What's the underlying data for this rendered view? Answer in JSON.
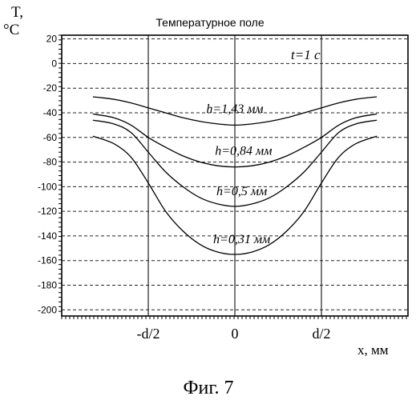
{
  "figure_caption": "Фиг. 7",
  "chart_data": {
    "type": "line",
    "title": "Температурное поле",
    "ylabel_symbol": "T,",
    "ylabel_unit": "°C",
    "xlabel": "x, мм",
    "annotation": "t=1 c",
    "ylim": [
      -205,
      23
    ],
    "yticks": [
      20,
      0,
      -20,
      -40,
      -60,
      -80,
      -100,
      -120,
      -140,
      -160,
      -180,
      -200
    ],
    "xlim": [
      -1,
      1
    ],
    "xticks": [
      {
        "value": -0.5,
        "label": "-d/2"
      },
      {
        "value": 0,
        "label": "0"
      },
      {
        "value": 0.5,
        "label": "d/2"
      }
    ],
    "grid": true,
    "series": [
      {
        "name": "h=1,43 мм",
        "x": [
          -0.82,
          -0.7,
          -0.6,
          -0.5,
          -0.4,
          -0.3,
          -0.2,
          -0.1,
          0,
          0.1,
          0.2,
          0.3,
          0.4,
          0.5,
          0.6,
          0.7,
          0.82
        ],
        "y": [
          -27,
          -29,
          -32,
          -36,
          -40,
          -44,
          -47,
          -49,
          -50,
          -49,
          -47,
          -44,
          -40,
          -36,
          -32,
          -29,
          -27
        ]
      },
      {
        "name": "h=0,84 мм",
        "x": [
          -0.82,
          -0.7,
          -0.6,
          -0.5,
          -0.4,
          -0.3,
          -0.2,
          -0.1,
          0,
          0.1,
          0.2,
          0.3,
          0.4,
          0.5,
          0.6,
          0.7,
          0.82
        ],
        "y": [
          -41,
          -44,
          -50,
          -60,
          -68,
          -75,
          -80,
          -83,
          -84,
          -83,
          -80,
          -75,
          -68,
          -60,
          -50,
          -44,
          -41
        ]
      },
      {
        "name": "h=0,5 мм",
        "x": [
          -0.82,
          -0.7,
          -0.6,
          -0.5,
          -0.4,
          -0.3,
          -0.2,
          -0.1,
          0,
          0.1,
          0.2,
          0.3,
          0.4,
          0.5,
          0.6,
          0.7,
          0.82
        ],
        "y": [
          -46,
          -49,
          -56,
          -72,
          -88,
          -100,
          -109,
          -114,
          -116,
          -114,
          -109,
          -100,
          -88,
          -72,
          -56,
          -49,
          -46
        ]
      },
      {
        "name": "h=0,31 мм",
        "x": [
          -0.82,
          -0.7,
          -0.6,
          -0.5,
          -0.4,
          -0.3,
          -0.2,
          -0.1,
          0,
          0.1,
          0.2,
          0.3,
          0.4,
          0.5,
          0.6,
          0.7,
          0.82
        ],
        "y": [
          -59,
          -65,
          -76,
          -97,
          -120,
          -136,
          -147,
          -153,
          -155,
          -153,
          -147,
          -136,
          -120,
          -97,
          -76,
          -65,
          -59
        ]
      }
    ]
  }
}
